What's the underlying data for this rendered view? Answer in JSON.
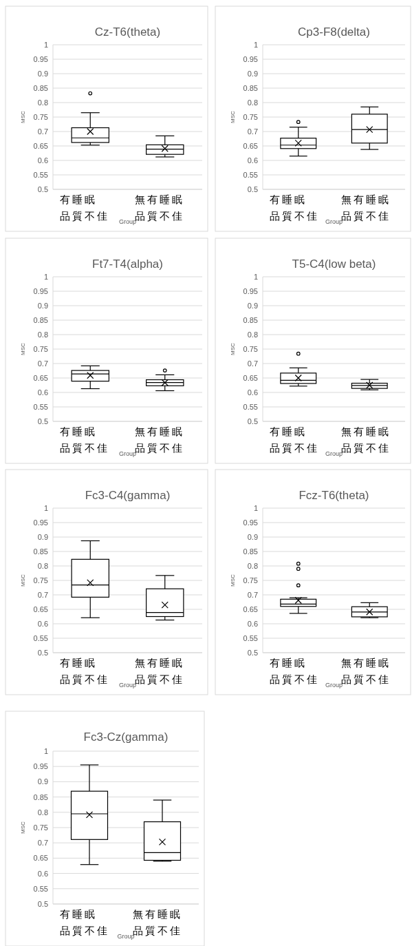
{
  "chart_data": [
    {
      "type": "box",
      "title": "Cz-T6(theta)",
      "xlabel": "Group",
      "ylabel": "MSC",
      "categories": [
        "有睡眠品質不佳",
        "無有睡眠品質不佳"
      ],
      "ylim": [
        0.5,
        1
      ],
      "yticks": [
        0.5,
        0.55,
        0.6,
        0.65,
        0.7,
        0.75,
        0.8,
        0.85,
        0.9,
        0.95,
        1
      ],
      "grid": "y",
      "boxes": [
        {
          "low": 0.653,
          "q1": 0.662,
          "median": 0.678,
          "q3": 0.713,
          "high": 0.765,
          "mean": 0.7,
          "outliers": [
            0.832
          ]
        },
        {
          "low": 0.612,
          "q1": 0.621,
          "median": 0.639,
          "q3": 0.654,
          "high": 0.685,
          "mean": 0.641
        }
      ]
    },
    {
      "type": "box",
      "title": "Cp3-F8(delta)",
      "xlabel": "Group",
      "ylabel": "MSC",
      "categories": [
        "有睡眠品質不佳",
        "無有睡眠品質不佳"
      ],
      "ylim": [
        0.5,
        1
      ],
      "yticks": [
        0.5,
        0.55,
        0.6,
        0.65,
        0.7,
        0.75,
        0.8,
        0.85,
        0.9,
        0.95,
        1
      ],
      "grid": "y",
      "boxes": [
        {
          "low": 0.615,
          "q1": 0.641,
          "median": 0.653,
          "q3": 0.677,
          "high": 0.715,
          "mean": 0.66,
          "outliers": [
            0.733
          ]
        },
        {
          "low": 0.638,
          "q1": 0.66,
          "median": 0.707,
          "q3": 0.76,
          "high": 0.785,
          "mean": 0.707
        }
      ]
    },
    {
      "type": "box",
      "title": "Ft7-T4(alpha)",
      "xlabel": "Group",
      "ylabel": "MSC",
      "categories": [
        "有睡眠品質不佳",
        "無有睡眠品質不佳"
      ],
      "ylim": [
        0.5,
        1
      ],
      "yticks": [
        0.5,
        0.55,
        0.6,
        0.65,
        0.7,
        0.75,
        0.8,
        0.85,
        0.9,
        0.95,
        1
      ],
      "grid": "y",
      "boxes": [
        {
          "low": 0.613,
          "q1": 0.639,
          "median": 0.664,
          "q3": 0.676,
          "high": 0.692,
          "mean": 0.659
        },
        {
          "low": 0.606,
          "q1": 0.623,
          "median": 0.634,
          "q3": 0.644,
          "high": 0.661,
          "mean": 0.634,
          "outliers": [
            0.676
          ]
        }
      ]
    },
    {
      "type": "box",
      "title": "T5-C4(low beta)",
      "xlabel": "Group",
      "ylabel": "MSC",
      "categories": [
        "有睡眠品質不佳",
        "無有睡眠品質不佳"
      ],
      "ylim": [
        0.5,
        1
      ],
      "yticks": [
        0.5,
        0.55,
        0.6,
        0.65,
        0.7,
        0.75,
        0.8,
        0.85,
        0.9,
        0.95,
        1
      ],
      "grid": "y",
      "boxes": [
        {
          "low": 0.622,
          "q1": 0.631,
          "median": 0.642,
          "q3": 0.667,
          "high": 0.685,
          "mean": 0.65,
          "outliers": [
            0.734
          ]
        },
        {
          "low": 0.609,
          "q1": 0.614,
          "median": 0.624,
          "q3": 0.632,
          "high": 0.645,
          "mean": 0.625
        }
      ]
    },
    {
      "type": "box",
      "title": "Fc3-C4(gamma)",
      "xlabel": "Group",
      "ylabel": "MSC",
      "categories": [
        "有睡眠品質不佳",
        "無有睡眠品質不佳"
      ],
      "ylim": [
        0.5,
        1
      ],
      "yticks": [
        0.5,
        0.55,
        0.6,
        0.65,
        0.7,
        0.75,
        0.8,
        0.85,
        0.9,
        0.95,
        1
      ],
      "grid": "y",
      "boxes": [
        {
          "low": 0.621,
          "q1": 0.692,
          "median": 0.734,
          "q3": 0.823,
          "high": 0.887,
          "mean": 0.742
        },
        {
          "low": 0.613,
          "q1": 0.625,
          "median": 0.639,
          "q3": 0.721,
          "high": 0.767,
          "mean": 0.665
        }
      ]
    },
    {
      "type": "box",
      "title": "Fcz-T6(theta)",
      "xlabel": "Group",
      "ylabel": "MSC",
      "categories": [
        "有睡眠品質不佳",
        "無有睡眠品質不佳"
      ],
      "ylim": [
        0.5,
        1
      ],
      "yticks": [
        0.5,
        0.55,
        0.6,
        0.65,
        0.7,
        0.75,
        0.8,
        0.85,
        0.9,
        0.95,
        1
      ],
      "grid": "y",
      "boxes": [
        {
          "low": 0.636,
          "q1": 0.66,
          "median": 0.668,
          "q3": 0.685,
          "high": 0.69,
          "mean": 0.681,
          "outliers": [
            0.733,
            0.79,
            0.808
          ]
        },
        {
          "low": 0.621,
          "q1": 0.624,
          "median": 0.641,
          "q3": 0.659,
          "high": 0.673,
          "mean": 0.641
        }
      ]
    },
    {
      "type": "box",
      "title": "Fc3-Cz(gamma)",
      "xlabel": "Group",
      "ylabel": "MSC",
      "categories": [
        "有睡眠品質不佳",
        "無有睡眠品質不佳"
      ],
      "ylim": [
        0.5,
        1
      ],
      "yticks": [
        0.5,
        0.55,
        0.6,
        0.65,
        0.7,
        0.75,
        0.8,
        0.85,
        0.9,
        0.95,
        1
      ],
      "grid": "y",
      "boxes": [
        {
          "low": 0.629,
          "q1": 0.711,
          "median": 0.795,
          "q3": 0.869,
          "high": 0.955,
          "mean": 0.792
        },
        {
          "low": 0.64,
          "q1": 0.643,
          "median": 0.668,
          "q3": 0.769,
          "high": 0.84,
          "mean": 0.703
        }
      ]
    }
  ]
}
